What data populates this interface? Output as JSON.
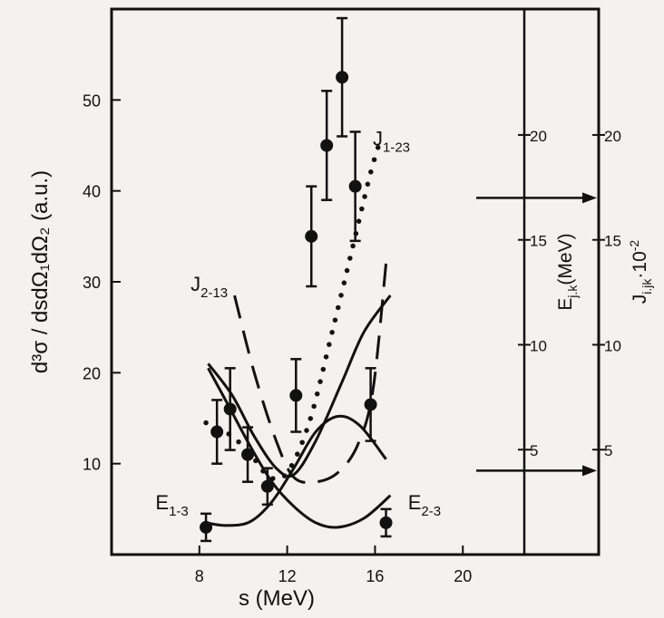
{
  "chart_data": {
    "type": "scatter",
    "title": "",
    "xlabel": "s (MeV)",
    "ylabel": "d³σ / dsdΩ₁dΩ₂ (a.u.)",
    "xlim": [
      4,
      22.8
    ],
    "ylim": [
      0,
      60
    ],
    "x_ticks": [
      8,
      12,
      16,
      20
    ],
    "x_tick_labels": [
      "8",
      "12",
      "16",
      "20"
    ],
    "y_ticks": [
      10,
      20,
      30,
      40,
      50
    ],
    "y_tick_labels": [
      "10",
      "20",
      "30",
      "40",
      "50"
    ],
    "grid": false,
    "data_points": {
      "x": [
        8.3,
        8.8,
        9.4,
        10.2,
        11.1,
        12.4,
        13.1,
        13.8,
        14.5,
        15.1,
        15.8,
        16.5
      ],
      "y": [
        3.0,
        13.5,
        16.0,
        11.0,
        7.5,
        17.5,
        35.0,
        45.0,
        52.5,
        40.5,
        16.5,
        3.5
      ],
      "yerr": [
        1.5,
        3.5,
        4.5,
        3.0,
        2.0,
        4.0,
        5.5,
        6.0,
        6.5,
        6.0,
        4.0,
        1.5
      ]
    },
    "series": [
      {
        "name": "J1-23",
        "style": "dotted",
        "x": [
          8.3,
          9.5,
          10.5,
          11.2,
          12.0,
          13.0,
          14.0,
          15.0,
          15.8,
          16.3
        ],
        "y": [
          14.5,
          13.0,
          10.5,
          8.5,
          9.0,
          14.5,
          24.0,
          34.0,
          42.0,
          46.0
        ]
      },
      {
        "name": "J2-13",
        "style": "dashed",
        "x": [
          9.6,
          10.5,
          11.5,
          12.3,
          13.3,
          14.3,
          15.2,
          15.9,
          16.5
        ],
        "y": [
          28.5,
          20.0,
          12.5,
          8.5,
          8.0,
          9.0,
          12.0,
          18.0,
          32.0
        ]
      },
      {
        "name": "total",
        "style": "solid",
        "x": [
          8.4,
          9.5,
          10.5,
          11.5,
          12.3,
          13.3,
          14.5,
          15.5,
          16.7
        ],
        "y": [
          21.0,
          17.5,
          13.0,
          9.5,
          8.8,
          12.5,
          19.0,
          24.5,
          28.5
        ]
      },
      {
        "name": "E1-3",
        "style": "solid",
        "x": [
          8.3,
          9.2,
          10.3,
          11.3,
          12.3,
          13.3,
          14.3,
          15.3,
          16.5
        ],
        "y": [
          3.5,
          3.2,
          3.6,
          5.8,
          9.5,
          13.5,
          15.2,
          14.2,
          10.5
        ]
      },
      {
        "name": "E2-3",
        "style": "solid",
        "x": [
          8.4,
          9.3,
          10.3,
          11.3,
          12.3,
          13.3,
          14.3,
          15.5,
          16.7
        ],
        "y": [
          20.5,
          16.5,
          12.0,
          8.0,
          5.3,
          3.5,
          3.0,
          4.0,
          6.5
        ]
      }
    ],
    "curve_labels": [
      {
        "text": "J1-23",
        "main": "J",
        "sub": "1-23",
        "x": 15.9,
        "y": 45
      },
      {
        "text": "J2-13",
        "main": "J",
        "sub": "2-13",
        "x": 7.6,
        "y": 29
      },
      {
        "text": "E1-3",
        "main": "E",
        "sub": "1-3",
        "x": 6.0,
        "y": 5
      },
      {
        "text": "E2-3",
        "main": "E",
        "sub": "2-3",
        "x": 17.5,
        "y": 5
      }
    ],
    "side_axes": [
      {
        "label": "E_j.k (MeV)",
        "main": "E",
        "sub": "j.k",
        "unit": "(MeV)",
        "ylim": [
          0,
          26
        ],
        "ticks": [
          5,
          10,
          15,
          20
        ],
        "tick_labels": [
          "5",
          "10",
          "15",
          "20"
        ]
      },
      {
        "label": "J_i.jk · 10^-2",
        "main": "J",
        "sub": "i.jk",
        "suffix": "·10",
        "sup": "-2",
        "ylim": [
          0,
          26
        ],
        "ticks": [
          5,
          10,
          15,
          20
        ],
        "tick_labels": [
          "5",
          "10",
          "15",
          "20"
        ]
      }
    ],
    "arrows_to_axis_value": [
      17,
      4
    ]
  }
}
